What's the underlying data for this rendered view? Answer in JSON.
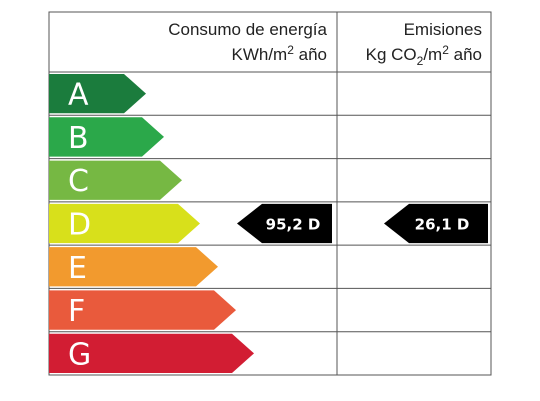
{
  "header": {
    "energy": {
      "line1": "Consumo de energía",
      "line2": "KWh/m",
      "sup": "2",
      "end": " año"
    },
    "emissions": {
      "line1": "Emisiones",
      "line2": "Kg CO",
      "sub": "2",
      "mid": "/m",
      "sup": "2",
      "end": " año"
    }
  },
  "ratings": [
    {
      "letter": "A",
      "color": "#1b7c3d"
    },
    {
      "letter": "B",
      "color": "#2ba84a"
    },
    {
      "letter": "C",
      "color": "#76b843"
    },
    {
      "letter": "D",
      "color": "#d8e01b",
      "energy_label": "95,2 D",
      "emissions_label": "26,1 D"
    },
    {
      "letter": "E",
      "color": "#f29a2e"
    },
    {
      "letter": "F",
      "color": "#e95a3c"
    },
    {
      "letter": "G",
      "color": "#d21d33"
    }
  ]
}
